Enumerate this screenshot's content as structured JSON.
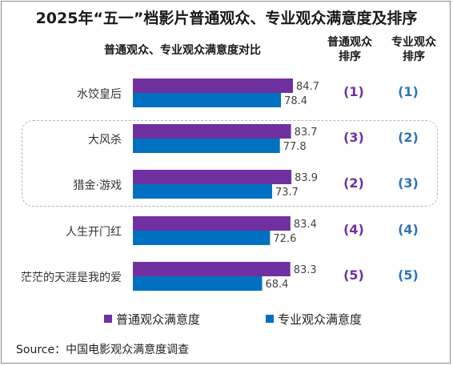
{
  "title": "2025年“五一”档影片普通观众、专业观众满意度及排序",
  "subtitle": "普通观众、专业观众满意度对比",
  "column_headers": {
    "general_rank": [
      "普通观众",
      "排序"
    ],
    "pro_rank": [
      "专业观众",
      "排序"
    ]
  },
  "legend": {
    "general": "普通观众满意度",
    "pro": "专业观众满意度"
  },
  "source": "Source：中国电影观众满意度调查",
  "colors": {
    "general": "#7030a0",
    "pro": "#0070c0",
    "rank_pro_text": "#2e75b6"
  },
  "chart_data": {
    "type": "bar",
    "orientation": "horizontal",
    "categories": [
      "水饺皇后",
      "大风杀",
      "猎金·游戏",
      "人生开门红",
      "茫茫的天涯是我的爱"
    ],
    "series": [
      {
        "name": "普通观众满意度",
        "values": [
          84.7,
          83.7,
          83.9,
          83.4,
          83.3
        ]
      },
      {
        "name": "专业观众满意度",
        "values": [
          78.4,
          77.8,
          73.7,
          72.6,
          68.4
        ]
      }
    ],
    "data_labels": {
      "general": [
        "84.7",
        "83.7",
        "83.9",
        "83.4",
        "83.3"
      ],
      "pro": [
        "78.4",
        "77.8",
        "73.7",
        "72.6",
        "68.4"
      ]
    },
    "ranks": {
      "general": [
        "(1)",
        "(3)",
        "(2)",
        "(4)",
        "(5)"
      ],
      "pro": [
        "(1)",
        "(2)",
        "(3)",
        "(4)",
        "(5)"
      ]
    },
    "axis_visible": false,
    "grid": false,
    "legend_position": "bottom"
  }
}
